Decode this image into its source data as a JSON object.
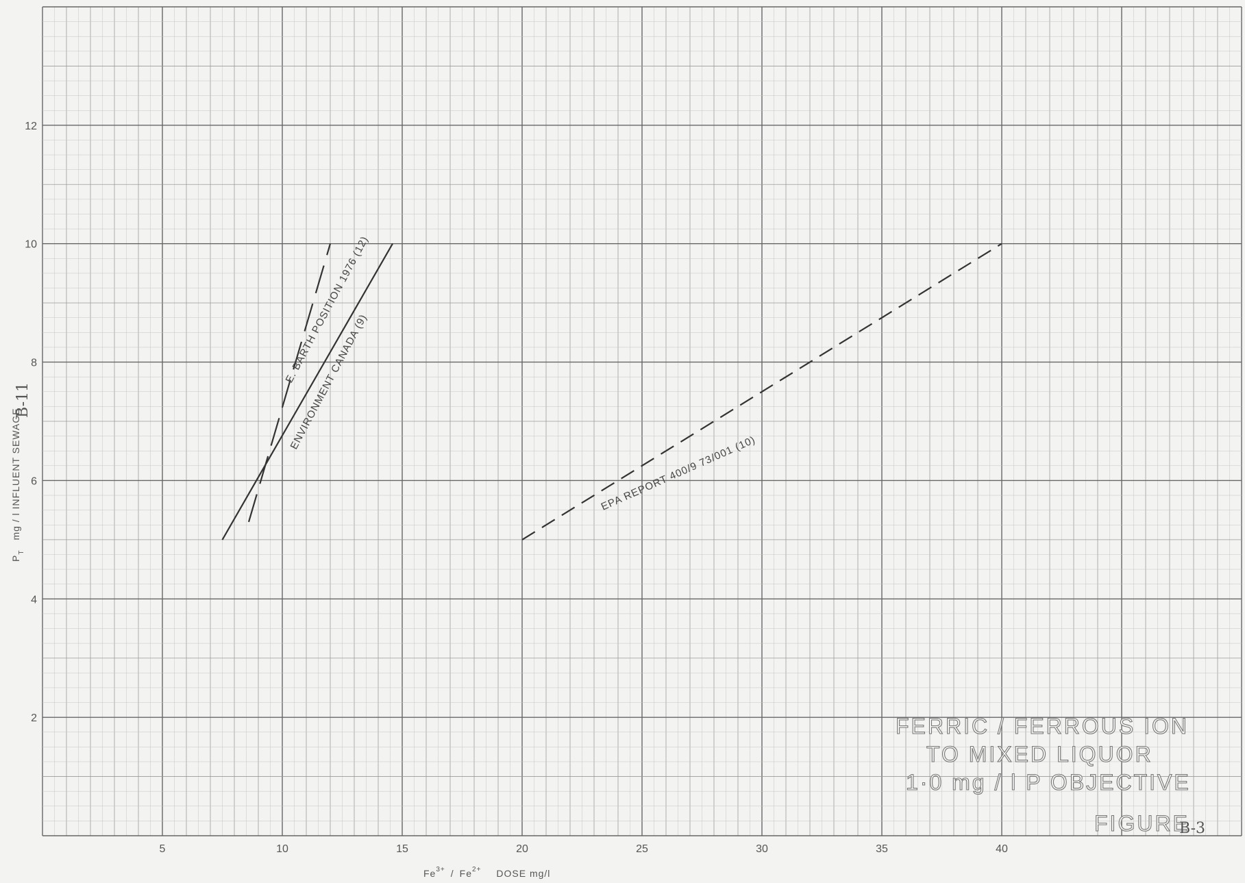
{
  "chart_data": {
    "type": "line",
    "x_axis_label": "Fe3+ / Fe2+ DOSE mg/l",
    "y_axis_label": "P_T mg/l INFLUENT SEWAGE",
    "xlim": [
      0,
      50
    ],
    "ylim": [
      0,
      14
    ],
    "x_ticks": [
      "5",
      "10",
      "15",
      "20",
      "25",
      "30",
      "35",
      "40"
    ],
    "y_ticks": [
      "2",
      "4",
      "6",
      "8",
      "10",
      "12"
    ],
    "grid": true,
    "series": [
      {
        "name": "E. BARTH POSITION 1976 (12)",
        "style": "long-dash",
        "color": "#333333",
        "points": [
          [
            8.6,
            5.3
          ],
          [
            12.0,
            10.0
          ]
        ]
      },
      {
        "name": "ENVIRONMENT CANADA (9)",
        "style": "solid",
        "color": "#333333",
        "points": [
          [
            7.5,
            5.0
          ],
          [
            14.6,
            10.0
          ]
        ]
      },
      {
        "name": "EPA REPORT 400/9 73/001 (10)",
        "style": "dashed",
        "color": "#333333",
        "points": [
          [
            20.0,
            5.0
          ],
          [
            40.0,
            10.0
          ]
        ]
      }
    ],
    "annotation": {
      "lines": [
        "FERRIC / FERROUS ION",
        "TO MIXED LIQUOR",
        "1·0 mg / l P OBJECTIVE",
        "FIGURE"
      ]
    }
  },
  "figure_number": "B-3",
  "page_number": "B-11",
  "x_title_parts": {
    "fe3": "Fe",
    "sup3": "3+",
    "slash": "/",
    "fe2": "Fe",
    "sup2": "2+",
    "rest": "DOSE mg/l"
  },
  "y_title_parts": {
    "pt": "P",
    "sub": "T",
    "rest": "mg / l  INFLUENT  SEWAGE"
  }
}
